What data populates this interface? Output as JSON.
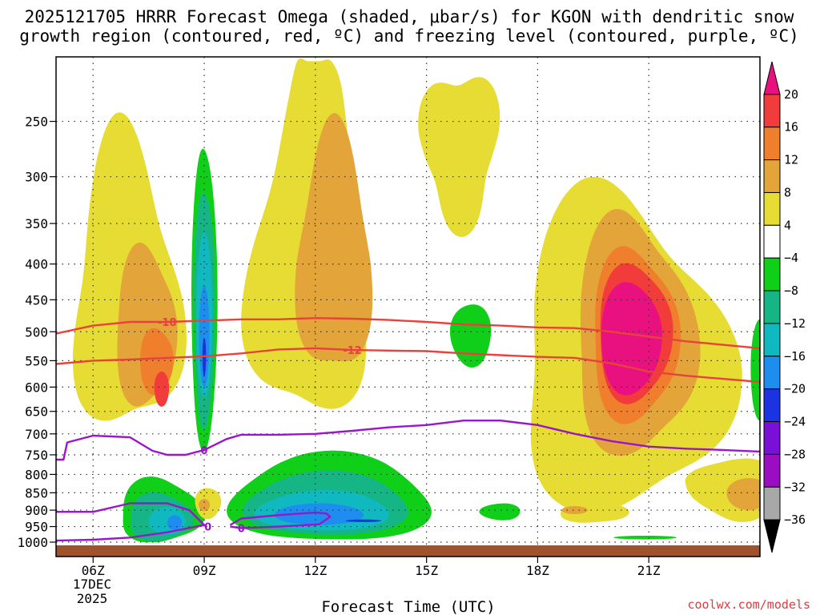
{
  "chart_data": {
    "type": "heatmap",
    "title_line1": "2025121705 HRRR Forecast Omega (shaded, μbar/s) for KGON with dendritic snow",
    "title_line2": "growth region (contoured, red, ºC) and freezing level (contoured, purple, ºC)",
    "xlabel": "Forecast Time (UTC)",
    "ylabel": "",
    "credit": "coolwx.com/models",
    "x_range_hours": [
      5.0,
      24.0
    ],
    "x_ticks": [
      {
        "hour": 6,
        "label": "06Z"
      },
      {
        "hour": 9,
        "label": "09Z"
      },
      {
        "hour": 12,
        "label": "12Z"
      },
      {
        "hour": 15,
        "label": "15Z"
      },
      {
        "hour": 18,
        "label": "18Z"
      },
      {
        "hour": 21,
        "label": "21Z"
      }
    ],
    "x_date_label_line1": "17DEC",
    "x_date_label_line2": "2025",
    "y_scale": "log-pressure",
    "y_range_hpa": [
      1000,
      200
    ],
    "y_ticks": [
      250,
      300,
      350,
      400,
      450,
      500,
      550,
      600,
      650,
      700,
      750,
      800,
      850,
      900,
      950,
      1000
    ],
    "grid": true,
    "colorbar": {
      "units": "μbar/s",
      "labels": [
        "20",
        "16",
        "12",
        "8",
        "4",
        "−4",
        "−8",
        "−12",
        "−16",
        "−20",
        "−24",
        "−28",
        "−32",
        "−36"
      ],
      "colors": [
        "#e8117f",
        "#f23c3c",
        "#ef7f2c",
        "#e3a43a",
        "#e7dc33",
        "#ffffff",
        "#0fcf18",
        "#15b586",
        "#10b9bf",
        "#1d8ef0",
        "#1b33e0",
        "#7a10d8",
        "#9a0dc1",
        "#a8a8a8",
        "#000000"
      ]
    },
    "omega_regions": [
      {
        "value": 6,
        "label": "rising motion 4 to 8",
        "band": "#e7dc33"
      },
      {
        "value": 10,
        "label": "rising motion 8 to 12",
        "band": "#e3a43a"
      },
      {
        "value": 14,
        "label": "rising motion 12 to 16",
        "band": "#ef7f2c"
      },
      {
        "value": 18,
        "label": "rising motion 16 to 20",
        "band": "#f23c3c"
      },
      {
        "value": 22,
        "label": "rising motion above 20",
        "band": "#e8117f"
      },
      {
        "value": -6,
        "label": "sinking -4 to -8",
        "band": "#0fcf18"
      },
      {
        "value": -10,
        "label": "sinking -8 to -12",
        "band": "#15b586"
      },
      {
        "value": -14,
        "label": "sinking -12 to -16",
        "band": "#10b9bf"
      },
      {
        "value": -18,
        "label": "sinking -16 to -20",
        "band": "#1d8ef0"
      },
      {
        "value": -22,
        "label": "sinking -20 to -24",
        "band": "#1b33e0"
      }
    ],
    "contours": [
      {
        "name": "dgz-top",
        "label": "-18",
        "units": "ºC",
        "color": "#e8423c",
        "points": [
          [
            5.0,
            503
          ],
          [
            6.0,
            490
          ],
          [
            7.0,
            484
          ],
          [
            8.0,
            484
          ],
          [
            9.0,
            482
          ],
          [
            10.0,
            480
          ],
          [
            11.0,
            480
          ],
          [
            12.0,
            478
          ],
          [
            13.0,
            479
          ],
          [
            14.0,
            481
          ],
          [
            15.0,
            484
          ],
          [
            16.0,
            488
          ],
          [
            17.0,
            490
          ],
          [
            18.0,
            493
          ],
          [
            19.0,
            494
          ],
          [
            20.0,
            500
          ],
          [
            21.0,
            508
          ],
          [
            22.0,
            516
          ],
          [
            23.0,
            522
          ],
          [
            24.0,
            528
          ]
        ]
      },
      {
        "name": "dgz-bottom",
        "label": "-12",
        "units": "ºC",
        "color": "#e8423c",
        "points": [
          [
            5.0,
            556
          ],
          [
            6.0,
            550
          ],
          [
            7.0,
            548
          ],
          [
            8.0,
            545
          ],
          [
            9.0,
            542
          ],
          [
            10.0,
            537
          ],
          [
            11.0,
            530
          ],
          [
            12.0,
            528
          ],
          [
            13.0,
            531
          ],
          [
            14.0,
            532
          ],
          [
            15.0,
            533
          ],
          [
            16.0,
            537
          ],
          [
            17.0,
            540
          ],
          [
            18.0,
            543
          ],
          [
            19.0,
            545
          ],
          [
            20.0,
            555
          ],
          [
            21.0,
            570
          ],
          [
            22.0,
            578
          ],
          [
            23.0,
            584
          ],
          [
            24.0,
            590
          ]
        ]
      },
      {
        "name": "freezing-level",
        "label": "0",
        "units": "ºC",
        "color": "#9a16c9",
        "points": [
          [
            5.0,
            762
          ],
          [
            5.2,
            762
          ],
          [
            5.3,
            720
          ],
          [
            6.0,
            704
          ],
          [
            7.0,
            708
          ],
          [
            7.6,
            740
          ],
          [
            8.0,
            750
          ],
          [
            8.5,
            750
          ],
          [
            9.0,
            738
          ],
          [
            9.6,
            712
          ],
          [
            10.0,
            702
          ],
          [
            11.0,
            702
          ],
          [
            12.0,
            700
          ],
          [
            13.0,
            693
          ],
          [
            14.0,
            685
          ],
          [
            15.0,
            680
          ],
          [
            16.0,
            670
          ],
          [
            17.0,
            670
          ],
          [
            18.0,
            680
          ],
          [
            19.0,
            700
          ],
          [
            20.0,
            717
          ],
          [
            21.0,
            730
          ],
          [
            22.0,
            735
          ],
          [
            23.0,
            738
          ],
          [
            24.0,
            742
          ]
        ]
      },
      {
        "name": "near-surface-0c-west",
        "label": "0",
        "units": "ºC",
        "color": "#9a16c9",
        "points": [
          [
            5.0,
            905
          ],
          [
            6.0,
            905
          ],
          [
            7.0,
            880
          ],
          [
            8.0,
            880
          ],
          [
            8.6,
            900
          ],
          [
            9.0,
            945
          ],
          [
            8.0,
            968
          ],
          [
            7.0,
            985
          ],
          [
            6.0,
            992
          ],
          [
            5.0,
            995
          ]
        ]
      },
      {
        "name": "near-surface-0c-east",
        "label": "0",
        "units": "ºC",
        "color": "#9a16c9",
        "points": [
          [
            9.7,
            945
          ],
          [
            10.0,
            925
          ],
          [
            11.0,
            915
          ],
          [
            12.0,
            907
          ],
          [
            12.3,
            910
          ],
          [
            12.4,
            920
          ],
          [
            12.1,
            943
          ],
          [
            11.0,
            950
          ],
          [
            10.0,
            955
          ],
          [
            9.7,
            950
          ]
        ]
      }
    ]
  }
}
